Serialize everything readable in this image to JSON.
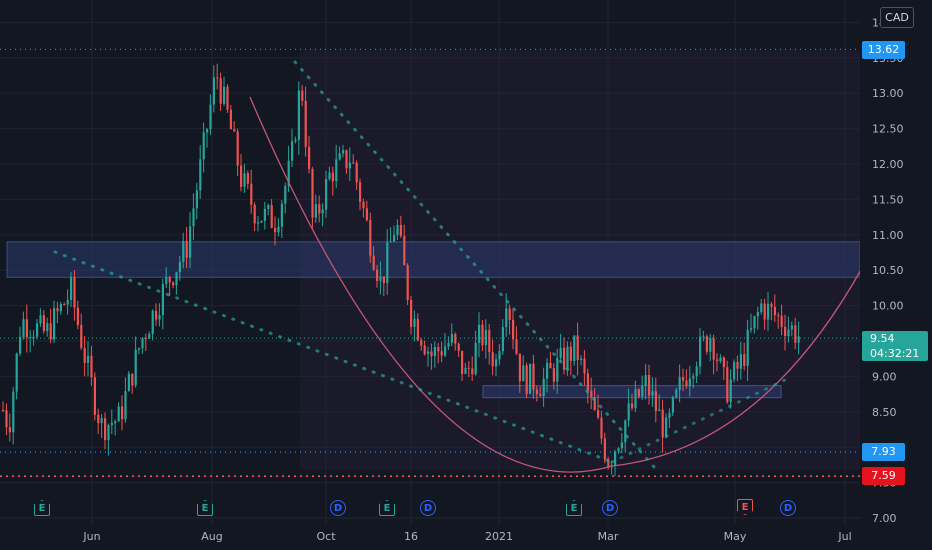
{
  "currency": "CAD",
  "price_axis": {
    "ticks": [
      "14.00",
      "13.50",
      "13.00",
      "12.50",
      "12.00",
      "11.50",
      "11.00",
      "10.50",
      "10.00",
      "9.50",
      "9.00",
      "8.50",
      "8.00",
      "7.50",
      "7.00"
    ]
  },
  "time_axis": {
    "labels": [
      "Jun",
      "Aug",
      "Oct",
      "16",
      "2021",
      "Mar",
      "May",
      "Jul"
    ]
  },
  "badges": {
    "high": "13.62",
    "current_price": "9.54",
    "countdown": "04:32:21",
    "support": "7.93",
    "low": "7.59"
  },
  "colors": {
    "background": "#131722",
    "up": "#26a69a",
    "down": "#ef5350",
    "zone_fill": "#2a3b6b",
    "zone_border": "#5b7bd5",
    "curve": "#c2567a",
    "dotted_trend": "#26a69a",
    "high_line": "#2196f3",
    "low_line": "#ef5350",
    "support_line": "#2196f3"
  },
  "events": [
    {
      "type": "earnings",
      "letter": "E"
    },
    {
      "type": "earnings",
      "letter": "E"
    },
    {
      "type": "dividend",
      "letter": "D"
    },
    {
      "type": "earnings",
      "letter": "E"
    },
    {
      "type": "dividend",
      "letter": "D"
    },
    {
      "type": "earnings",
      "letter": "E"
    },
    {
      "type": "dividend",
      "letter": "D"
    },
    {
      "type": "earnings-upcoming",
      "letter": "E"
    },
    {
      "type": "dividend",
      "letter": "D"
    }
  ],
  "chart_data": {
    "type": "candlestick",
    "symbol_currency": "CAD",
    "ylim": [
      7.0,
      14.0
    ],
    "key_levels": {
      "high": 13.62,
      "support": 7.93,
      "low": 7.59,
      "last": 9.54
    },
    "zones": [
      {
        "name": "resistance-zone",
        "from": 10.4,
        "to": 10.9
      },
      {
        "name": "support-zone",
        "from": 8.7,
        "to": 8.87
      }
    ],
    "monthly_closes_approx": [
      {
        "month": "May 2020",
        "close": 9.4
      },
      {
        "month": "Jun 2020",
        "close": 8.2
      },
      {
        "month": "Jul 2020",
        "close": 10.8
      },
      {
        "month": "Aug 2020",
        "close": 11.7
      },
      {
        "month": "Sep 2020",
        "close": 12.0
      },
      {
        "month": "Oct 2020",
        "close": 11.3
      },
      {
        "month": "Nov 2020",
        "close": 9.3
      },
      {
        "month": "Dec 2020",
        "close": 9.6
      },
      {
        "month": "Jan 2021",
        "close": 8.9
      },
      {
        "month": "Feb 2021",
        "close": 9.3
      },
      {
        "month": "Mar 2021",
        "close": 8.3
      },
      {
        "month": "Apr 2021",
        "close": 9.4
      },
      {
        "month": "May 2021",
        "close": 9.8
      }
    ]
  }
}
